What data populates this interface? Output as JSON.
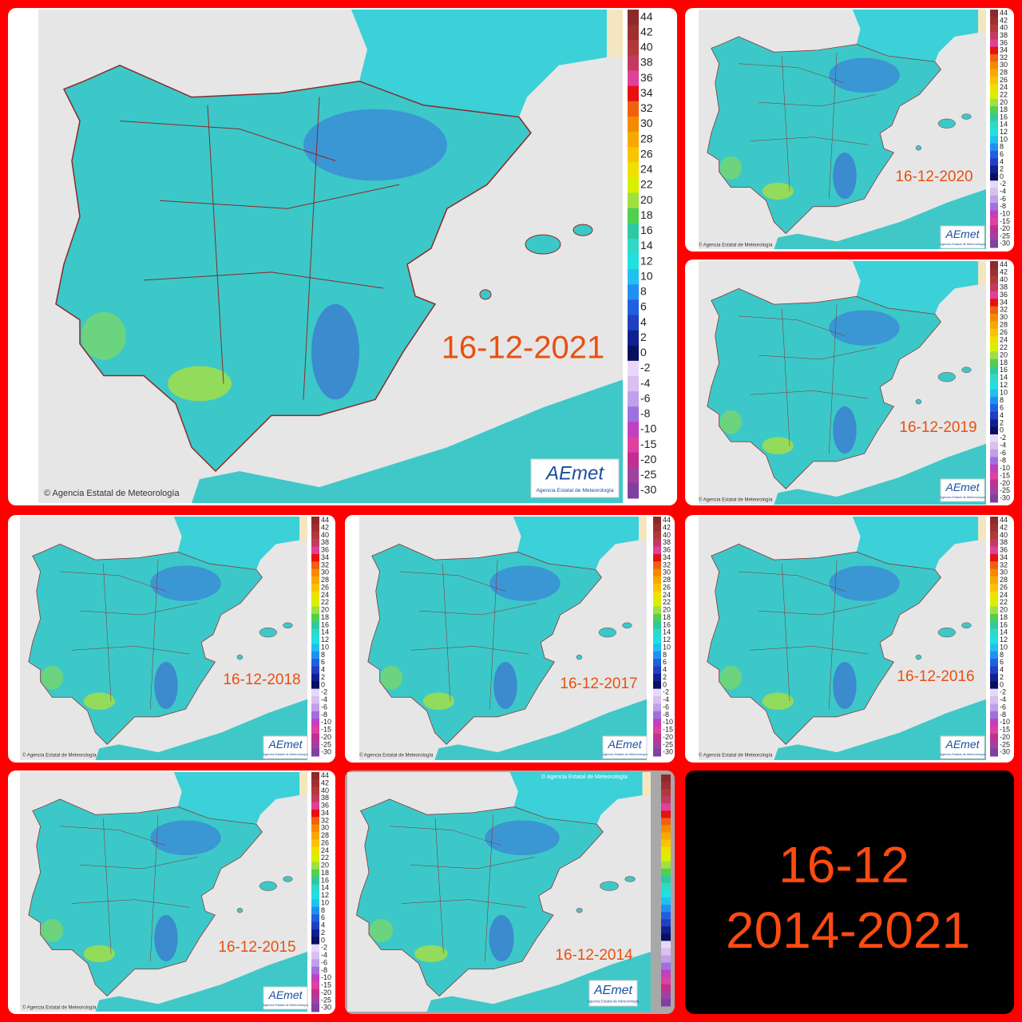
{
  "panels": [
    {
      "date": "16-12-2021"
    },
    {
      "date": "16-12-2020"
    },
    {
      "date": "16-12-2019"
    },
    {
      "date": "16-12-2018"
    },
    {
      "date": "16-12-2017"
    },
    {
      "date": "16-12-2016"
    },
    {
      "date": "16-12-2015"
    },
    {
      "date": "16-12-2014"
    }
  ],
  "credit": "© Agencia Estatal de Meteorología",
  "logo": {
    "name": "AEmet",
    "subtitle": "Agencia Estatal de Meteorología"
  },
  "legend": {
    "labels": [
      "44",
      "42",
      "40",
      "38",
      "36",
      "34",
      "32",
      "30",
      "28",
      "26",
      "24",
      "22",
      "20",
      "18",
      "16",
      "14",
      "12",
      "10",
      "8",
      "6",
      "4",
      "2",
      "0",
      "-2",
      "-4",
      "-6",
      "-8",
      "-10",
      "-15",
      "-20",
      "-25",
      "-30"
    ],
    "colors": [
      "#8b2a2a",
      "#a03030",
      "#b03a3a",
      "#c23a60",
      "#e0409a",
      "#e81010",
      "#f06010",
      "#f58a00",
      "#f8a800",
      "#f8c400",
      "#f0e000",
      "#d8f000",
      "#a0e040",
      "#50d050",
      "#30c8a0",
      "#30d8c8",
      "#20e0e0",
      "#20c0f0",
      "#2090f0",
      "#2060e0",
      "#2040c0",
      "#102090",
      "#0a1060",
      "#e8d8f8",
      "#d8c0f0",
      "#c0a0e8",
      "#a070e0",
      "#c040c0",
      "#e040a0",
      "#c03090",
      "#a040a0",
      "#8040a0"
    ]
  },
  "summary": {
    "line1": "16-12",
    "line2": "2014-2021"
  }
}
